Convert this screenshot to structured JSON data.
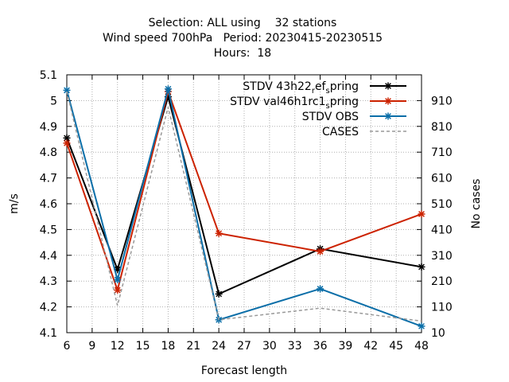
{
  "title_lines": [
    "Selection: ALL using    32 stations",
    "Wind speed 700hPa   Period: 20230415-20230515",
    "Hours:  18"
  ],
  "chart_data": {
    "type": "line",
    "xlabel": "Forecast length",
    "ylabel": "m/s",
    "y2label": "No cases",
    "xlim": [
      6,
      48
    ],
    "ylim": [
      4.1,
      5.1
    ],
    "y2lim": [
      10,
      1010
    ],
    "x_ticks": [
      6,
      9,
      12,
      15,
      18,
      21,
      24,
      27,
      30,
      33,
      36,
      39,
      42,
      45,
      48
    ],
    "y_ticks": [
      4.1,
      4.2,
      4.3,
      4.4,
      4.5,
      4.6,
      4.7,
      4.8,
      4.9,
      5,
      5.1
    ],
    "y_tick_labels": [
      "4.1",
      "4.2",
      "4.3",
      "4.4",
      "4.5",
      "4.6",
      "4.7",
      "4.8",
      "4.9",
      "5",
      "5.1"
    ],
    "y2_ticks": [
      10,
      110,
      210,
      310,
      410,
      510,
      610,
      710,
      810,
      910
    ],
    "grid": true,
    "legend_position": "top-right",
    "x": [
      6,
      12,
      18,
      24,
      36,
      48
    ],
    "series": [
      {
        "name_main": "STDV 43h22",
        "name_parts": [
          {
            "t": "STDV 43h22",
            "s": "n"
          },
          {
            "t": "r",
            "s": "sub"
          },
          {
            "t": "ef",
            "s": "n"
          },
          {
            "t": "s",
            "s": "sub"
          },
          {
            "t": "pring",
            "s": "n"
          }
        ],
        "axis": "y",
        "color": "#000000",
        "marker": "star",
        "values": [
          4.855,
          4.345,
          5.015,
          4.25,
          4.425,
          4.355
        ]
      },
      {
        "name_main": "STDV val46h1rc1",
        "name_parts": [
          {
            "t": "STDV val46h1rc1",
            "s": "n"
          },
          {
            "t": "s",
            "s": "sub"
          },
          {
            "t": "pring",
            "s": "n"
          }
        ],
        "axis": "y",
        "color": "#cc2200",
        "marker": "star",
        "values": [
          4.835,
          4.265,
          5.035,
          4.485,
          4.415,
          4.56
        ]
      },
      {
        "name_main": "STDV OBS",
        "name_parts": [
          {
            "t": "STDV OBS",
            "s": "n"
          }
        ],
        "axis": "y",
        "color": "#0a6ea8",
        "marker": "star",
        "values": [
          5.04,
          4.305,
          5.045,
          4.15,
          4.27,
          4.125
        ]
      },
      {
        "name_main": "CASES",
        "name_parts": [
          {
            "t": "CASES",
            "s": "n"
          }
        ],
        "axis": "y2",
        "color": "#999999",
        "dashed": true,
        "marker": "none",
        "values": [
          945,
          115,
          885,
          60,
          105,
          55
        ]
      }
    ]
  }
}
